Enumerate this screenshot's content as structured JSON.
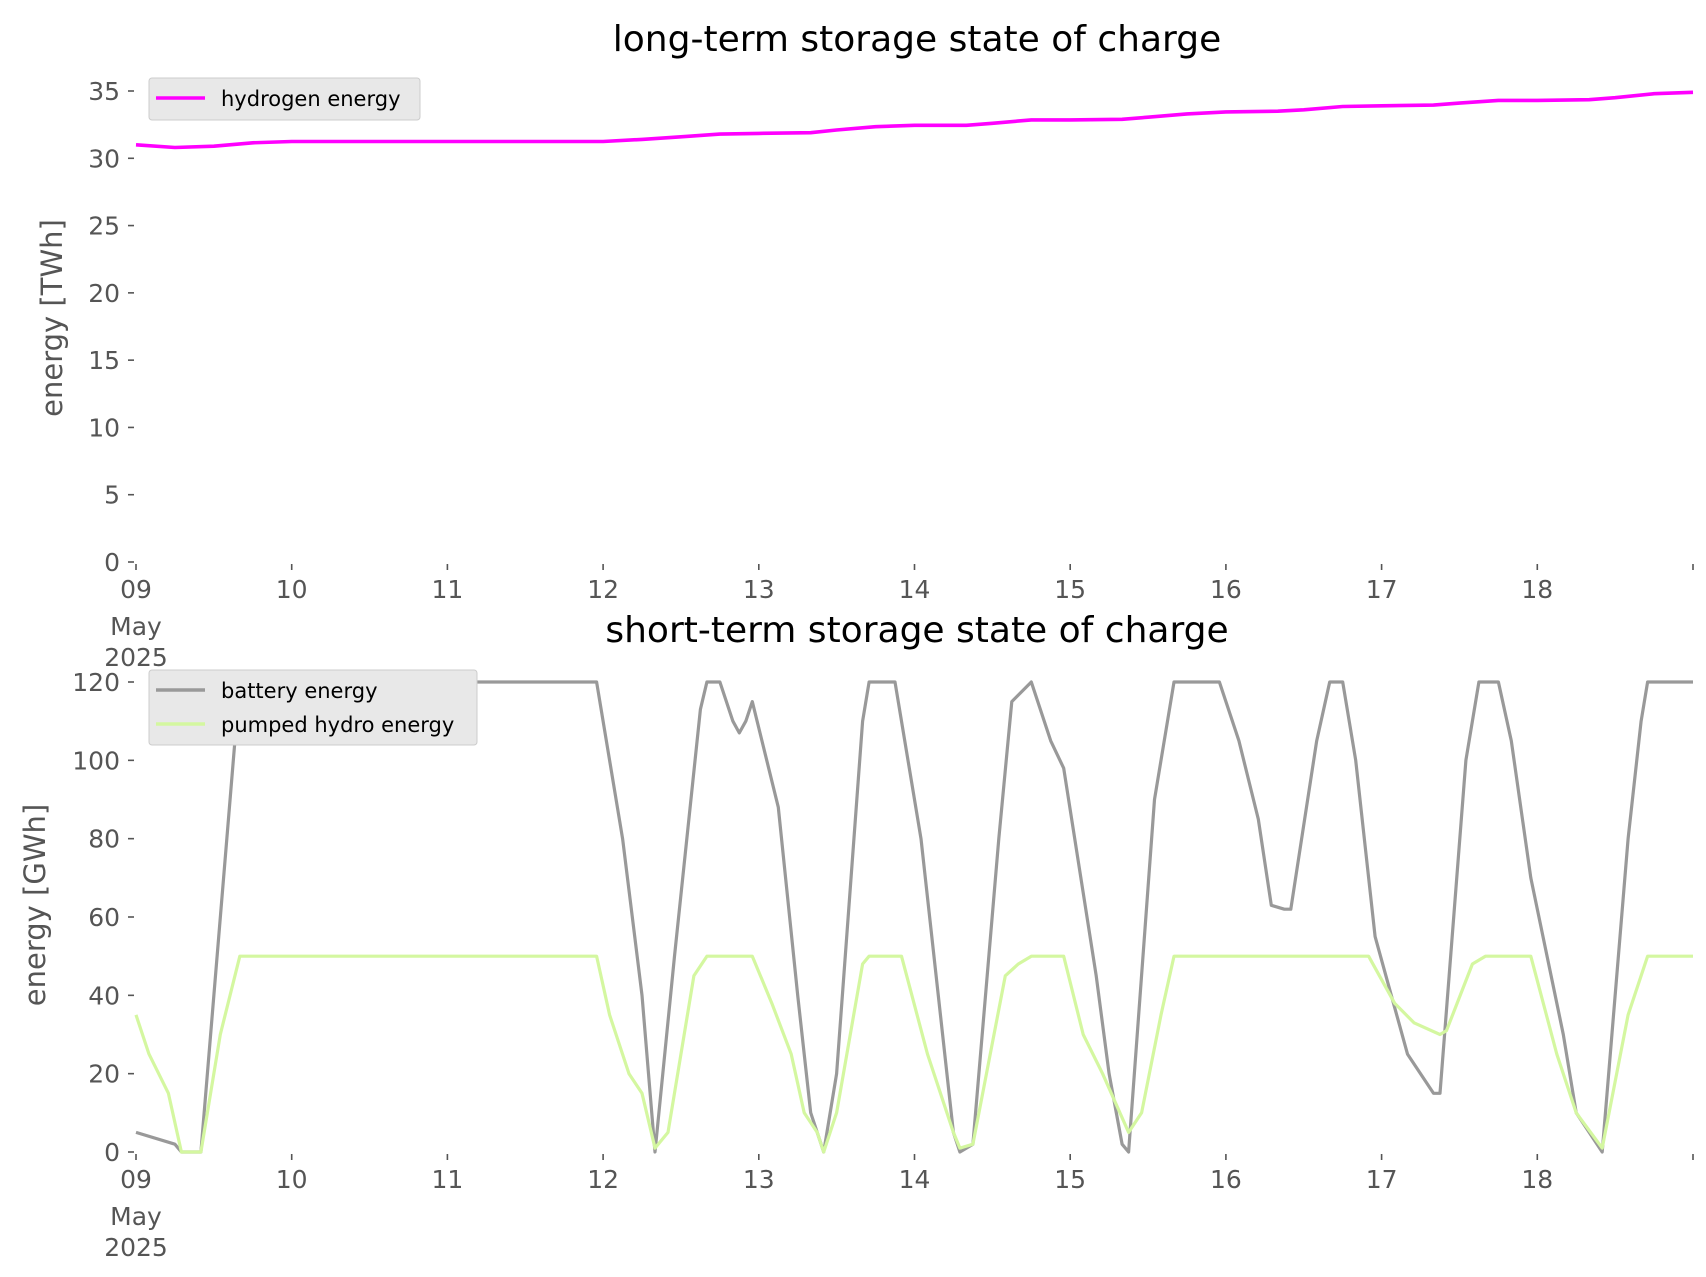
{
  "chart_data": [
    {
      "type": "line",
      "title": "long-term storage state of charge",
      "xlabel": "",
      "ylabel": "energy [TWh]",
      "xlim": [
        "2025-05-09 00:00",
        "2025-05-19 00:00"
      ],
      "ylim": [
        0,
        36
      ],
      "x_ticks": [
        "09",
        "10",
        "11",
        "12",
        "13",
        "14",
        "15",
        "16",
        "17",
        "18"
      ],
      "x_tick_sub": [
        "May",
        "2025"
      ],
      "y_ticks": [
        "0",
        "5",
        "10",
        "15",
        "20",
        "25",
        "30",
        "35"
      ],
      "y_tick_values": [
        0,
        5,
        10,
        15,
        20,
        25,
        30,
        35
      ],
      "grid": false,
      "legend": "top-left",
      "series": [
        {
          "name": "hydrogen energy",
          "color": "#ff00ff",
          "points": [
            [
              "2025-05-09 00:00",
              31.0
            ],
            [
              "2025-05-09 06:00",
              30.8
            ],
            [
              "2025-05-09 12:00",
              30.9
            ],
            [
              "2025-05-09 18:00",
              31.15
            ],
            [
              "2025-05-10 00:00",
              31.25
            ],
            [
              "2025-05-10 12:00",
              31.25
            ],
            [
              "2025-05-11 00:00",
              31.25
            ],
            [
              "2025-05-11 12:00",
              31.25
            ],
            [
              "2025-05-12 00:00",
              31.25
            ],
            [
              "2025-05-12 06:00",
              31.4
            ],
            [
              "2025-05-12 12:00",
              31.6
            ],
            [
              "2025-05-12 18:00",
              31.8
            ],
            [
              "2025-05-13 00:00",
              31.85
            ],
            [
              "2025-05-13 08:00",
              31.9
            ],
            [
              "2025-05-13 12:00",
              32.1
            ],
            [
              "2025-05-13 18:00",
              32.35
            ],
            [
              "2025-05-14 00:00",
              32.45
            ],
            [
              "2025-05-14 08:00",
              32.45
            ],
            [
              "2025-05-14 12:00",
              32.6
            ],
            [
              "2025-05-14 18:00",
              32.85
            ],
            [
              "2025-05-15 00:00",
              32.85
            ],
            [
              "2025-05-15 08:00",
              32.9
            ],
            [
              "2025-05-15 12:00",
              33.05
            ],
            [
              "2025-05-15 18:00",
              33.3
            ],
            [
              "2025-05-16 00:00",
              33.45
            ],
            [
              "2025-05-16 08:00",
              33.5
            ],
            [
              "2025-05-16 12:00",
              33.6
            ],
            [
              "2025-05-16 18:00",
              33.85
            ],
            [
              "2025-05-17 00:00",
              33.9
            ],
            [
              "2025-05-17 08:00",
              33.95
            ],
            [
              "2025-05-17 12:00",
              34.1
            ],
            [
              "2025-05-17 18:00",
              34.3
            ],
            [
              "2025-05-18 00:00",
              34.3
            ],
            [
              "2025-05-18 08:00",
              34.35
            ],
            [
              "2025-05-18 12:00",
              34.5
            ],
            [
              "2025-05-18 18:00",
              34.8
            ],
            [
              "2025-05-19 00:00",
              34.9
            ]
          ]
        }
      ]
    },
    {
      "type": "line",
      "title": "short-term storage state of charge",
      "xlabel": "",
      "ylabel": "energy [GWh]",
      "xlim": [
        "2025-05-09 00:00",
        "2025-05-19 00:00"
      ],
      "ylim": [
        0,
        125
      ],
      "x_ticks": [
        "09",
        "10",
        "11",
        "12",
        "13",
        "14",
        "15",
        "16",
        "17",
        "18"
      ],
      "x_tick_sub": [
        "May",
        "2025"
      ],
      "y_ticks": [
        "0",
        "20",
        "40",
        "60",
        "80",
        "100",
        "120"
      ],
      "y_tick_values": [
        0,
        20,
        40,
        60,
        80,
        100,
        120
      ],
      "grid": false,
      "legend": "top-left",
      "series": [
        {
          "name": "battery energy",
          "color": "#999999",
          "points": [
            [
              "2025-05-09 00:00",
              5
            ],
            [
              "2025-05-09 06:00",
              2
            ],
            [
              "2025-05-09 07:00",
              0
            ],
            [
              "2025-05-09 10:00",
              0
            ],
            [
              "2025-05-09 16:00",
              120
            ],
            [
              "2025-05-11 23:00",
              120
            ],
            [
              "2025-05-12 03:00",
              80
            ],
            [
              "2025-05-12 06:00",
              40
            ],
            [
              "2025-05-12 08:00",
              0
            ],
            [
              "2025-05-12 11:00",
              50
            ],
            [
              "2025-05-12 15:00",
              113
            ],
            [
              "2025-05-12 16:00",
              120
            ],
            [
              "2025-05-12 18:00",
              120
            ],
            [
              "2025-05-12 20:00",
              110
            ],
            [
              "2025-05-12 21:00",
              107
            ],
            [
              "2025-05-12 22:00",
              110
            ],
            [
              "2025-05-12 23:00",
              115
            ],
            [
              "2025-05-13 03:00",
              88
            ],
            [
              "2025-05-13 06:00",
              40
            ],
            [
              "2025-05-13 08:00",
              10
            ],
            [
              "2025-05-13 10:00",
              0
            ],
            [
              "2025-05-13 12:00",
              20
            ],
            [
              "2025-05-13 16:00",
              110
            ],
            [
              "2025-05-13 17:00",
              120
            ],
            [
              "2025-05-13 21:00",
              120
            ],
            [
              "2025-05-14 01:00",
              80
            ],
            [
              "2025-05-14 06:00",
              5
            ],
            [
              "2025-05-14 07:00",
              0
            ],
            [
              "2025-05-14 09:00",
              2
            ],
            [
              "2025-05-14 13:00",
              80
            ],
            [
              "2025-05-14 15:00",
              115
            ],
            [
              "2025-05-14 18:00",
              120
            ],
            [
              "2025-05-14 21:00",
              105
            ],
            [
              "2025-05-14 23:00",
              98
            ],
            [
              "2025-05-15 04:00",
              45
            ],
            [
              "2025-05-15 06:00",
              20
            ],
            [
              "2025-05-15 08:00",
              2
            ],
            [
              "2025-05-15 09:00",
              0
            ],
            [
              "2025-05-15 13:00",
              90
            ],
            [
              "2025-05-15 16:00",
              120
            ],
            [
              "2025-05-15 23:00",
              120
            ],
            [
              "2025-05-16 02:00",
              105
            ],
            [
              "2025-05-16 05:00",
              85
            ],
            [
              "2025-05-16 07:00",
              63
            ],
            [
              "2025-05-16 09:00",
              62
            ],
            [
              "2025-05-16 10:00",
              62
            ],
            [
              "2025-05-16 14:00",
              105
            ],
            [
              "2025-05-16 16:00",
              120
            ],
            [
              "2025-05-16 18:00",
              120
            ],
            [
              "2025-05-16 20:00",
              100
            ],
            [
              "2025-05-16 23:00",
              55
            ],
            [
              "2025-05-17 04:00",
              25
            ],
            [
              "2025-05-17 08:00",
              15
            ],
            [
              "2025-05-17 09:00",
              15
            ],
            [
              "2025-05-17 13:00",
              100
            ],
            [
              "2025-05-17 15:00",
              120
            ],
            [
              "2025-05-17 18:00",
              120
            ],
            [
              "2025-05-17 20:00",
              105
            ],
            [
              "2025-05-17 23:00",
              70
            ],
            [
              "2025-05-18 04:00",
              30
            ],
            [
              "2025-05-18 06:00",
              10
            ],
            [
              "2025-05-18 08:00",
              5
            ],
            [
              "2025-05-18 10:00",
              0
            ],
            [
              "2025-05-18 14:00",
              80
            ],
            [
              "2025-05-18 16:00",
              110
            ],
            [
              "2025-05-18 17:00",
              120
            ],
            [
              "2025-05-19 00:00",
              120
            ]
          ]
        },
        {
          "name": "pumped hydro energy",
          "color": "#d4f7a0",
          "points": [
            [
              "2025-05-09 00:00",
              35
            ],
            [
              "2025-05-09 02:00",
              25
            ],
            [
              "2025-05-09 05:00",
              15
            ],
            [
              "2025-05-09 07:00",
              0
            ],
            [
              "2025-05-09 10:00",
              0
            ],
            [
              "2025-05-09 13:00",
              30
            ],
            [
              "2025-05-09 16:00",
              50
            ],
            [
              "2025-05-11 23:00",
              50
            ],
            [
              "2025-05-12 01:00",
              35
            ],
            [
              "2025-05-12 04:00",
              20
            ],
            [
              "2025-05-12 06:00",
              15
            ],
            [
              "2025-05-12 08:00",
              1
            ],
            [
              "2025-05-12 10:00",
              5
            ],
            [
              "2025-05-12 14:00",
              45
            ],
            [
              "2025-05-12 16:00",
              50
            ],
            [
              "2025-05-12 23:00",
              50
            ],
            [
              "2025-05-13 02:00",
              38
            ],
            [
              "2025-05-13 05:00",
              25
            ],
            [
              "2025-05-13 07:00",
              10
            ],
            [
              "2025-05-13 09:00",
              5
            ],
            [
              "2025-05-13 10:00",
              0
            ],
            [
              "2025-05-13 12:00",
              10
            ],
            [
              "2025-05-13 16:00",
              48
            ],
            [
              "2025-05-13 17:00",
              50
            ],
            [
              "2025-05-13 22:00",
              50
            ],
            [
              "2025-05-14 02:00",
              25
            ],
            [
              "2025-05-14 06:00",
              5
            ],
            [
              "2025-05-14 07:00",
              1
            ],
            [
              "2025-05-14 09:00",
              2
            ],
            [
              "2025-05-14 14:00",
              45
            ],
            [
              "2025-05-14 16:00",
              48
            ],
            [
              "2025-05-14 18:00",
              50
            ],
            [
              "2025-05-14 23:00",
              50
            ],
            [
              "2025-05-15 02:00",
              30
            ],
            [
              "2025-05-15 05:00",
              20
            ],
            [
              "2025-05-15 09:00",
              5
            ],
            [
              "2025-05-15 11:00",
              10
            ],
            [
              "2025-05-15 14:00",
              35
            ],
            [
              "2025-05-15 16:00",
              50
            ],
            [
              "2025-05-16 22:00",
              50
            ],
            [
              "2025-05-17 02:00",
              38
            ],
            [
              "2025-05-17 05:00",
              33
            ],
            [
              "2025-05-17 09:00",
              30
            ],
            [
              "2025-05-17 10:00",
              31
            ],
            [
              "2025-05-17 14:00",
              48
            ],
            [
              "2025-05-17 16:00",
              50
            ],
            [
              "2025-05-17 23:00",
              50
            ],
            [
              "2025-05-18 03:00",
              25
            ],
            [
              "2025-05-18 06:00",
              10
            ],
            [
              "2025-05-18 10:00",
              1
            ],
            [
              "2025-05-18 14:00",
              35
            ],
            [
              "2025-05-18 17:00",
              50
            ],
            [
              "2025-05-19 00:00",
              50
            ]
          ]
        }
      ]
    }
  ]
}
